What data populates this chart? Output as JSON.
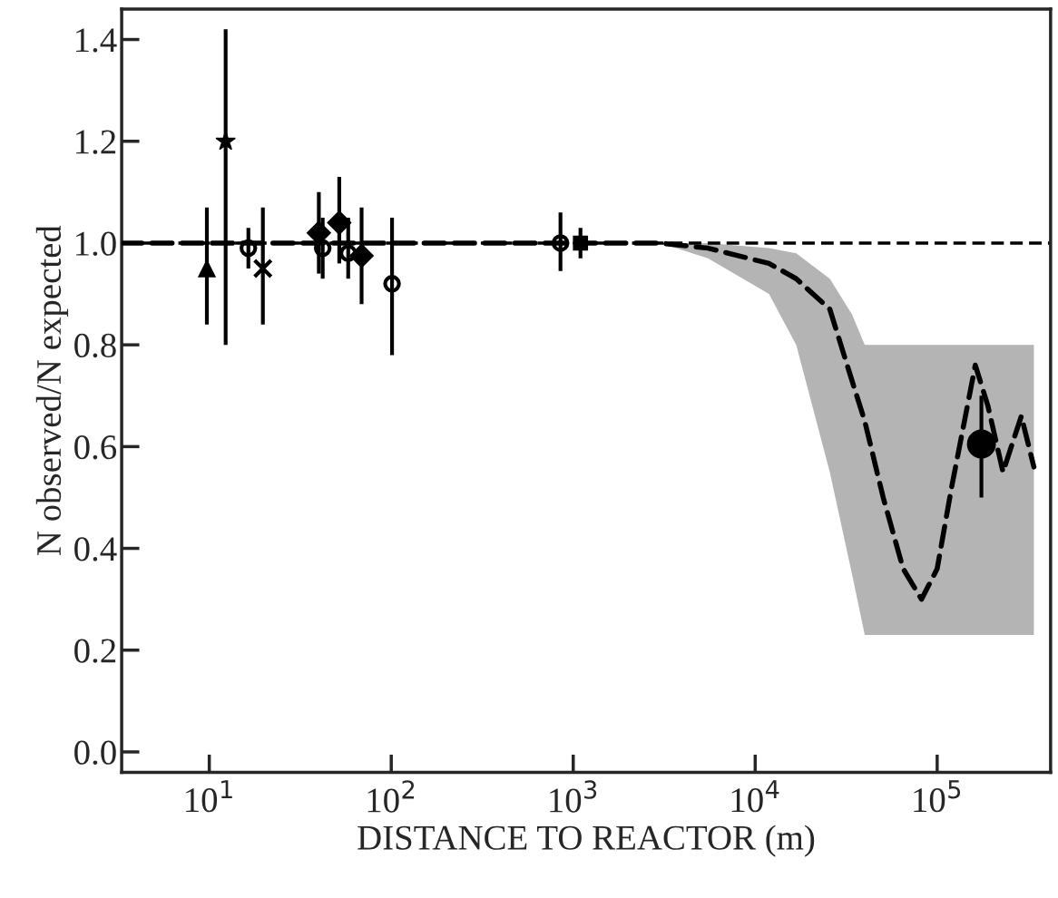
{
  "chart_data": {
    "type": "scatter",
    "xlabel": "DISTANCE TO REACTOR (m)",
    "ylabel": "N observed/N expected",
    "log": "x",
    "grid": false,
    "legend": false,
    "xlim": [
      3.3,
      420000
    ],
    "xticks": [
      {
        "value": 10,
        "label": "10$^{1}$"
      },
      {
        "value": 100,
        "label": "10$^{2}$"
      },
      {
        "value": 1000,
        "label": "10$^{3}$"
      },
      {
        "value": 10000,
        "label": "10$^{4}$"
      },
      {
        "value": 100000,
        "label": "10$^{5}$"
      }
    ],
    "ylim": [
      -0.04,
      1.46
    ],
    "yticks": [
      {
        "value": 0,
        "label": "0.0"
      },
      {
        "value": 0.2,
        "label": "0.2"
      },
      {
        "value": 0.4,
        "label": "0.4"
      },
      {
        "value": 0.6,
        "label": "0.6"
      },
      {
        "value": 0.8,
        "label": "0.8"
      },
      {
        "value": 1,
        "label": "1.0"
      },
      {
        "value": 1.2,
        "label": "1.2"
      },
      {
        "value": 1.4,
        "label": "1.4"
      }
    ],
    "ref_lines": [
      {
        "axis": "y",
        "value": 1.0,
        "color": "#000000",
        "line_style": "dashed"
      }
    ],
    "series": [
      {
        "type": "line",
        "color": "#000000",
        "line_style": "dashed",
        "marker": "none",
        "x": [
          3.3,
          3000,
          5500,
          11900,
          16800,
          25700,
          34000,
          40000,
          50500,
          65000,
          82000,
          100000,
          120000,
          162000,
          190000,
          230000,
          290000,
          340000
        ],
        "values": [
          1.0,
          1.0,
          0.99,
          0.96,
          0.93,
          0.87,
          0.73,
          0.65,
          0.5,
          0.36,
          0.3,
          0.36,
          0.52,
          0.76,
          0.68,
          0.55,
          0.66,
          0.56
        ],
        "lower": [
          null,
          1.0,
          0.97,
          0.9,
          0.8,
          0.55,
          0.35,
          0.23,
          0.23,
          0.23,
          0.23,
          0.23,
          0.23,
          0.23,
          0.23,
          0.23,
          0.23,
          0.23
        ],
        "upper": [
          null,
          1.0,
          1.0,
          0.99,
          0.98,
          0.93,
          0.86,
          0.8,
          0.8,
          0.8,
          0.8,
          0.8,
          0.8,
          0.8,
          0.8,
          0.8,
          0.8,
          0.8
        ]
      },
      {
        "color": "#000000",
        "marker": "triangle",
        "x": [
          9.7
        ],
        "values": [
          0.95
        ],
        "errors": [
          [
            0.84,
            1.07
          ]
        ]
      },
      {
        "color": "#000000",
        "marker": "star",
        "x": [
          12.3
        ],
        "values": [
          1.2
        ],
        "errors": [
          [
            0.8,
            1.42
          ]
        ]
      },
      {
        "color": "#000000",
        "marker": "circle",
        "x": [
          16.4
        ],
        "values": [
          0.99
        ],
        "errors": [
          [
            0.95,
            1.03
          ]
        ]
      },
      {
        "color": "#000000",
        "marker": "cross",
        "x": [
          19.7
        ],
        "values": [
          0.95
        ],
        "errors": [
          [
            0.84,
            1.07
          ]
        ]
      },
      {
        "color": "#000000",
        "marker": "diamond",
        "x": [
          40
        ],
        "values": [
          1.02
        ],
        "errors": [
          [
            0.94,
            1.1
          ]
        ]
      },
      {
        "color": "#000000",
        "marker": "circle",
        "x": [
          42
        ],
        "values": [
          0.99
        ],
        "errors": [
          [
            0.93,
            1.05
          ]
        ]
      },
      {
        "color": "#000000",
        "marker": "diamond",
        "x": [
          51.8
        ],
        "values": [
          1.04
        ],
        "errors": [
          [
            0.96,
            1.13
          ]
        ]
      },
      {
        "color": "#000000",
        "marker": "circle",
        "x": [
          58
        ],
        "values": [
          0.98
        ],
        "errors": [
          [
            0.93,
            1.05
          ]
        ]
      },
      {
        "color": "#000000",
        "marker": "diamond",
        "x": [
          68.7
        ],
        "values": [
          0.975
        ],
        "errors": [
          [
            0.88,
            1.07
          ]
        ]
      },
      {
        "color": "#000000",
        "marker": "circle",
        "x": [
          101
        ],
        "values": [
          0.92
        ],
        "errors": [
          [
            0.78,
            1.05
          ]
        ]
      },
      {
        "color": "#000000",
        "marker": "circle",
        "x": [
          851
        ],
        "values": [
          1.0
        ],
        "errors": [
          [
            0.945,
            1.06
          ]
        ]
      },
      {
        "color": "#000000",
        "marker": "square",
        "x": [
          1096
        ],
        "values": [
          1.0
        ],
        "errors": [
          [
            0.97,
            1.03
          ]
        ]
      },
      {
        "type": "bubble",
        "color": "#000000",
        "marker": "circle",
        "x": [
          175000
        ],
        "values": [
          0.605
        ],
        "sizes": [
          1
        ],
        "errors": [
          [
            0.5,
            0.7
          ]
        ]
      }
    ]
  }
}
